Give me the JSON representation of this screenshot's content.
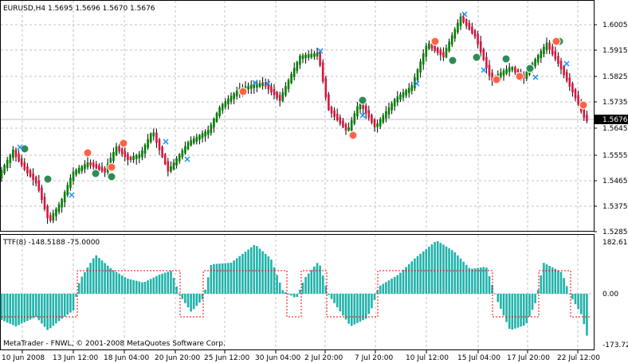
{
  "main_panel": {
    "header": "EURUSD,H4  1.5695 1.5696 1.5670 1.5676",
    "current_price_label": "1.5676",
    "y_tick_labels": [
      "1.6005",
      "1.5915",
      "1.5825",
      "1.5735",
      "1.5645",
      "1.5555",
      "1.5465",
      "1.5375",
      "1.5285"
    ]
  },
  "indicator_panel": {
    "header": "TTF(8) -148.5188 -75.0000",
    "y_tick_labels": [
      "182.61",
      "0.00",
      "-173.721"
    ],
    "footer": "MetaTrader - FNWL, © 2001-2008 MetaQuotes Software Corp."
  },
  "x_axis": {
    "tick_labels": [
      "10 Jun 2008",
      "13 Jun 12:00",
      "18 Jun 04:00",
      "20 Jun 20:00",
      "25 Jun 12:00",
      "30 Jun 04:00",
      "2 Jul 20:00",
      "7 Jul 20:00",
      "10 Jul 12:00",
      "15 Jul 04:00",
      "17 Jul 20:00",
      "22 Jul 12:00"
    ]
  },
  "colors": {
    "bull": "#008000",
    "bear": "#dc143c",
    "histogram": "#20b2aa",
    "signal_line": "#ff0000",
    "marker_up": "#2e8b57",
    "marker_down": "#ff6347",
    "cross": "#1e90ff",
    "grid": "#c0c0c0"
  }
}
